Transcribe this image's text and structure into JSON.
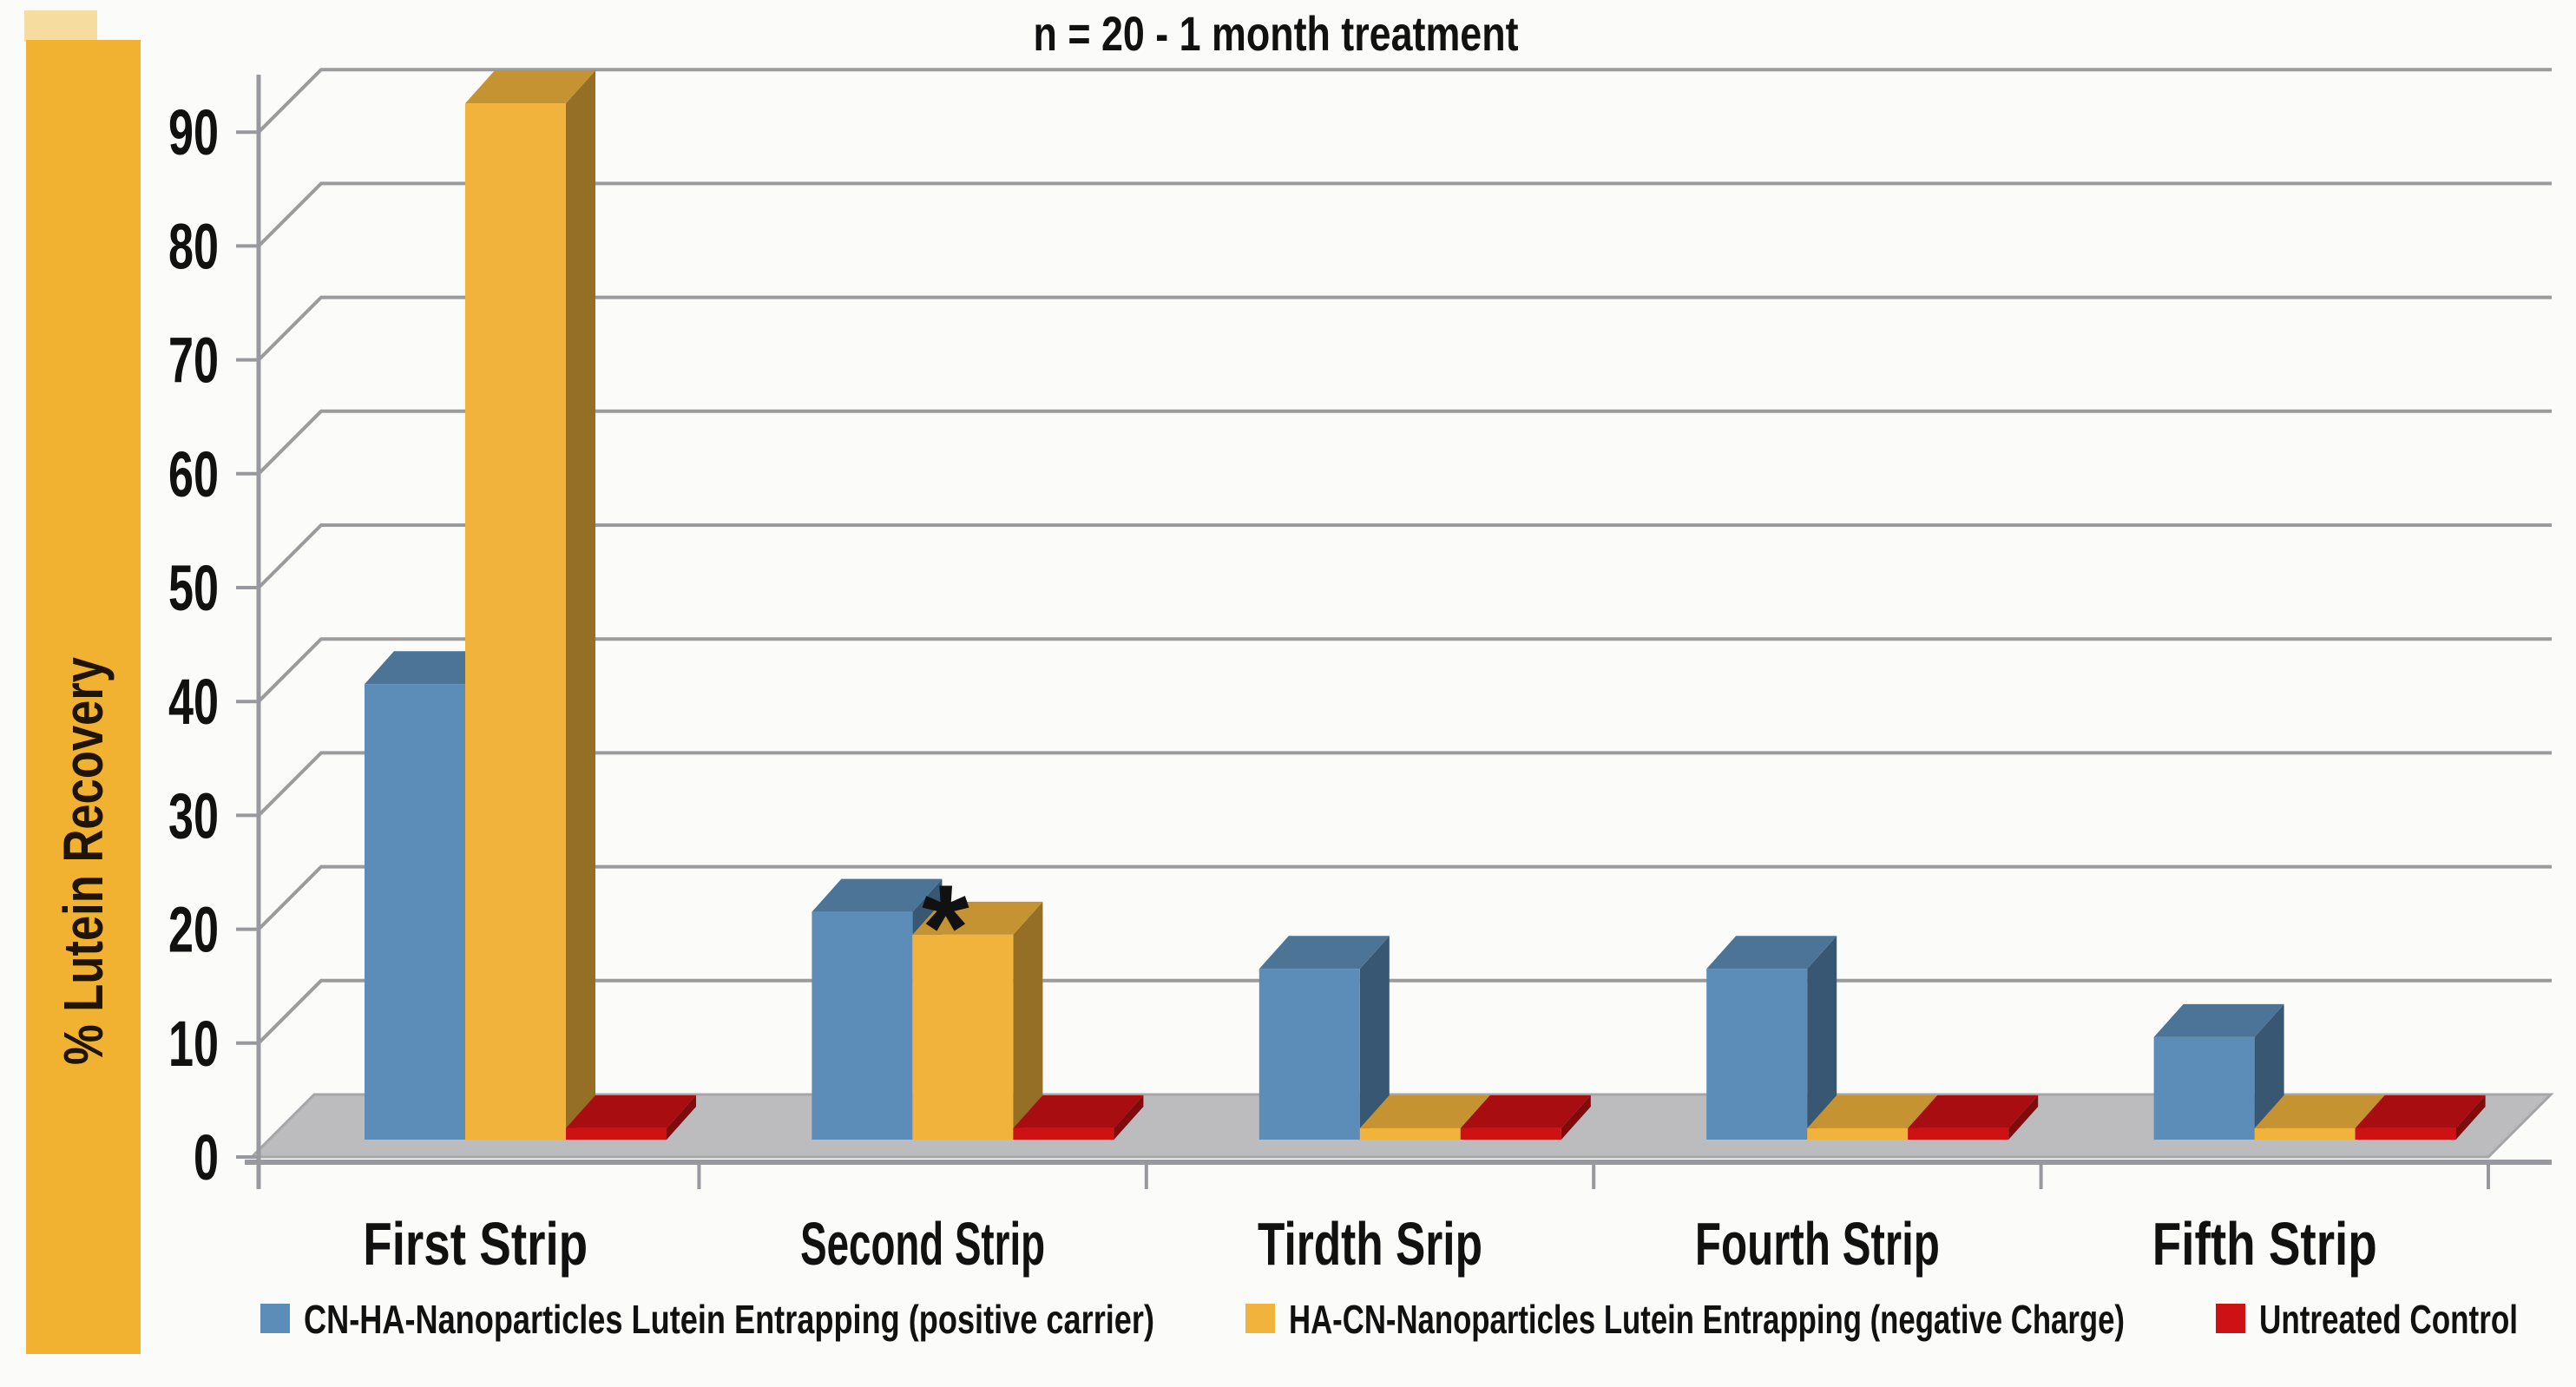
{
  "chart_data": {
    "type": "bar",
    "style": "3d-clustered",
    "title": "n = 20 - 1 month treatment",
    "ylabel": "% Lutein Recovery",
    "ylim": [
      0,
      90
    ],
    "ytick_step": 10,
    "yticks": [
      "0",
      "10",
      "20",
      "30",
      "40",
      "50",
      "60",
      "70",
      "80",
      "90"
    ],
    "grid": true,
    "legend_position": "bottom",
    "categories": [
      "First Strip",
      "Second Strip",
      "Tirdth Srip",
      "Fourth Strip",
      "Fifth Strip"
    ],
    "series": [
      {
        "name": "CN-HA-Nanoparticles Lutein Entrapping (positive carrier)",
        "color": "#5b8db8",
        "values": [
          40,
          20,
          15,
          15,
          9
        ]
      },
      {
        "name": "HA-CN-Nanoparticles Lutein Entrapping (negative Charge)",
        "color": "#f2b33d",
        "values": [
          91,
          18,
          1,
          1,
          1
        ]
      },
      {
        "name": "Untreated Control",
        "color": "#cd1115",
        "values": [
          1,
          1,
          1,
          1,
          1
        ]
      }
    ],
    "annotations": [
      {
        "text": "*",
        "category_index": 1,
        "series_index": 1
      }
    ],
    "colors": {
      "band": "#f1b232",
      "band_cap": "#f6dc9e",
      "floor": "#bcbcbe",
      "floor_edge": "#a6a6a8",
      "grid": "#9b9b9d",
      "axis": "#97999e",
      "text": "#111111",
      "ylabel_text": "#201403",
      "background": "#fbfbf9"
    }
  }
}
